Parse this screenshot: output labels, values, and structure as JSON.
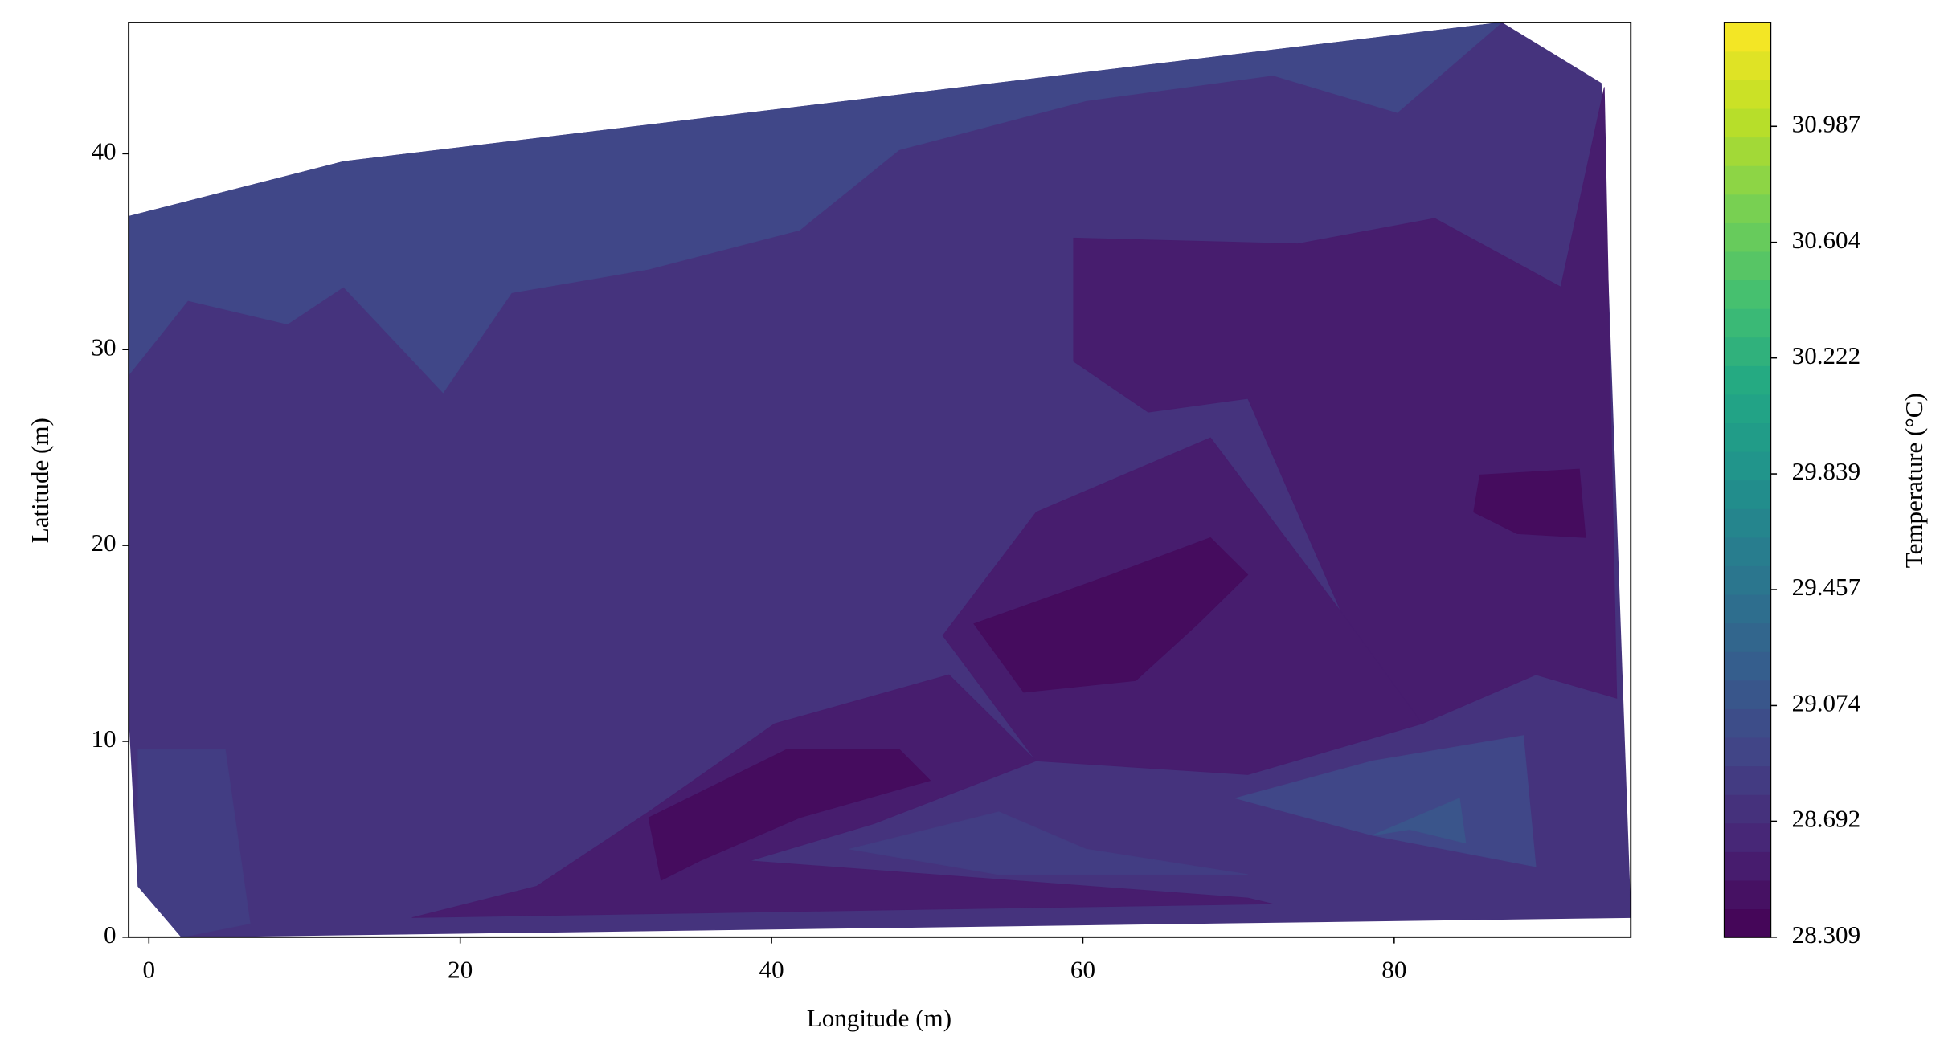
{
  "chart_data": {
    "type": "contour",
    "x_label": "Longitude (m)",
    "y_label": "Latitude (m)",
    "colorbar_label": "Temperature (°C)",
    "colormap": "viridis",
    "colorbar_bands": 32,
    "clim": [
      28.309,
      31.33
    ],
    "colorbar_ticks": [
      28.309,
      28.692,
      29.074,
      29.457,
      29.839,
      30.222,
      30.604,
      30.987
    ],
    "xlim": [
      -1.3,
      95.2
    ],
    "ylim": [
      0,
      46.7
    ],
    "xticks": [
      0,
      20,
      40,
      60,
      80
    ],
    "yticks": [
      0,
      10,
      20,
      30,
      40
    ],
    "regions": [
      {
        "level": 28.75,
        "points": [
          [
            -1.3,
            36.8
          ],
          [
            12.5,
            39.6
          ],
          [
            86.9,
            46.7
          ],
          [
            93.3,
            43.6
          ],
          [
            95.2,
            1.0
          ],
          [
            2.1,
            0
          ],
          [
            -0.7,
            2.6
          ],
          [
            -1.3,
            11.5
          ]
        ]
      },
      {
        "level": 28.95,
        "points": [
          [
            -1.3,
            36.8
          ],
          [
            12.5,
            39.6
          ],
          [
            86.9,
            46.7
          ],
          [
            80.2,
            42.1
          ],
          [
            72.2,
            44.0
          ],
          [
            60.2,
            42.7
          ],
          [
            48.2,
            40.2
          ],
          [
            41.8,
            36.1
          ],
          [
            32.1,
            34.1
          ],
          [
            23.3,
            32.9
          ],
          [
            18.9,
            27.8
          ],
          [
            12.5,
            33.2
          ],
          [
            8.9,
            31.3
          ],
          [
            2.5,
            32.5
          ],
          [
            -1.3,
            28.7
          ]
        ]
      },
      {
        "level": 28.55,
        "points": [
          [
            59.4,
            35.7
          ],
          [
            73.8,
            35.4
          ],
          [
            82.6,
            36.7
          ],
          [
            90.7,
            33.2
          ],
          [
            93.5,
            43.4
          ],
          [
            94.3,
            12.2
          ],
          [
            89.1,
            13.4
          ],
          [
            81.8,
            10.9
          ],
          [
            76.6,
            16.6
          ],
          [
            70.6,
            27.5
          ],
          [
            64.2,
            26.8
          ],
          [
            59.4,
            29.4
          ]
        ]
      },
      {
        "level": 28.55,
        "points": [
          [
            51.0,
            15.4
          ],
          [
            57.0,
            21.7
          ],
          [
            68.2,
            25.5
          ],
          [
            76.6,
            16.6
          ],
          [
            81.8,
            10.9
          ],
          [
            70.6,
            8.3
          ],
          [
            57.0,
            9.0
          ]
        ]
      },
      {
        "level": 28.55,
        "points": [
          [
            24.9,
            2.6
          ],
          [
            32.1,
            6.4
          ],
          [
            40.2,
            10.9
          ],
          [
            51.4,
            13.4
          ],
          [
            57.0,
            9.0
          ],
          [
            46.6,
            5.8
          ],
          [
            38.6,
            3.9
          ],
          [
            70.6,
            2.0
          ],
          [
            72.2,
            1.7
          ],
          [
            16.9,
            1.0
          ]
        ]
      },
      {
        "level": 28.4,
        "points": [
          [
            53.0,
            16.0
          ],
          [
            61.8,
            18.5
          ],
          [
            68.2,
            20.4
          ],
          [
            70.6,
            18.5
          ],
          [
            67.4,
            16.0
          ],
          [
            63.4,
            13.1
          ],
          [
            56.2,
            12.5
          ]
        ]
      },
      {
        "level": 28.4,
        "points": [
          [
            32.1,
            6.1
          ],
          [
            41.0,
            9.6
          ],
          [
            48.2,
            9.6
          ],
          [
            50.2,
            8.0
          ],
          [
            41.8,
            6.1
          ],
          [
            35.4,
            3.9
          ],
          [
            32.9,
            2.9
          ]
        ]
      },
      {
        "level": 28.4,
        "points": [
          [
            85.5,
            23.6
          ],
          [
            91.9,
            23.9
          ],
          [
            92.3,
            20.4
          ],
          [
            87.9,
            20.6
          ],
          [
            85.1,
            21.7
          ]
        ]
      },
      {
        "level": 28.95,
        "points": [
          [
            69.8,
            7.1
          ],
          [
            78.6,
            9.0
          ],
          [
            88.3,
            10.3
          ],
          [
            89.1,
            3.6
          ],
          [
            78.6,
            5.2
          ],
          [
            73.0,
            6.4
          ]
        ]
      },
      {
        "level": 29.1,
        "points": [
          [
            78.6,
            5.2
          ],
          [
            84.2,
            7.1
          ],
          [
            84.6,
            4.8
          ],
          [
            81.0,
            5.5
          ]
        ]
      },
      {
        "level": 28.85,
        "points": [
          [
            -0.7,
            9.6
          ],
          [
            4.9,
            9.6
          ],
          [
            6.5,
            0.7
          ],
          [
            2.1,
            0
          ],
          [
            -0.7,
            2.6
          ]
        ]
      },
      {
        "level": 28.85,
        "points": [
          [
            45.0,
            4.5
          ],
          [
            54.6,
            6.4
          ],
          [
            60.2,
            4.5
          ],
          [
            70.6,
            3.2
          ],
          [
            54.6,
            3.2
          ]
        ]
      }
    ]
  }
}
